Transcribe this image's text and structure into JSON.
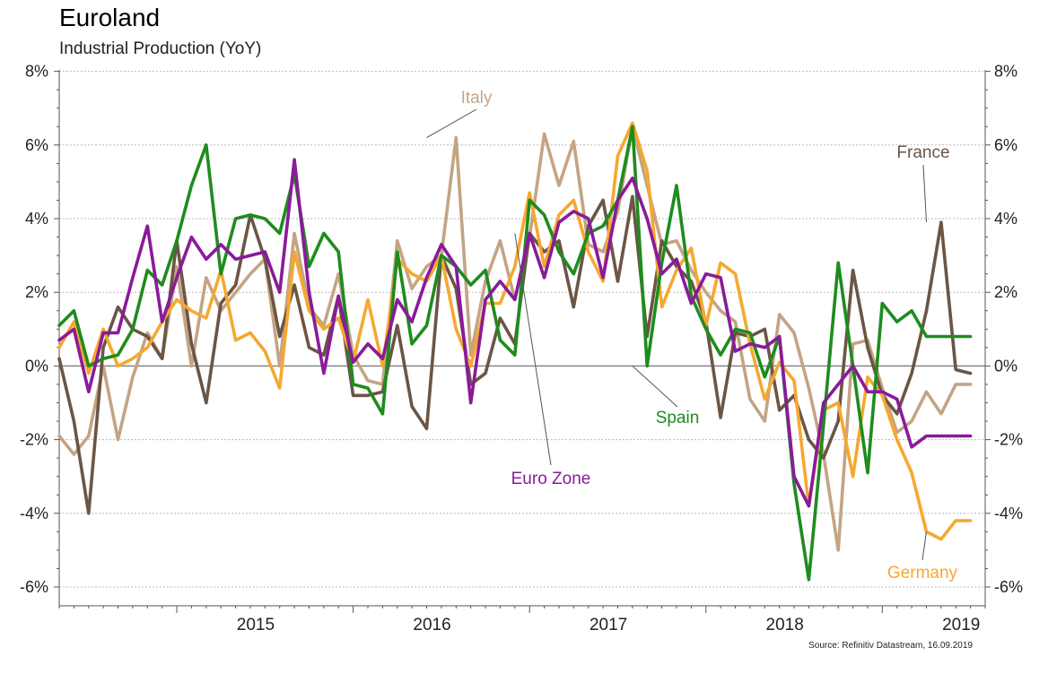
{
  "title": "Euroland",
  "subtitle": "Industrial Production (YoY)",
  "source": "Source: Refinitiv Datastream, 16.09.2019",
  "colors": {
    "italy": "#c4a484",
    "france": "#6b5544",
    "germany": "#f5a830",
    "spain": "#1e8c1e",
    "eurozone": "#8a1a9a"
  },
  "chart_data": {
    "type": "line",
    "title": "Euroland",
    "subtitle": "Industrial Production (YoY)",
    "yunit": "%",
    "ylim": [
      -6,
      8
    ],
    "yticks": [
      "-6%",
      "-4%",
      "-2%",
      "0%",
      "2%",
      "4%",
      "6%",
      "8%"
    ],
    "ytick_values": [
      -6,
      -4,
      -2,
      0,
      2,
      4,
      6,
      8
    ],
    "xticks": [
      "2015",
      "2016",
      "2017",
      "2018",
      "2019"
    ],
    "xlim": [
      "2014-05",
      "2019-08"
    ],
    "grid": true,
    "x": [
      "2014-05",
      "2014-06",
      "2014-07",
      "2014-08",
      "2014-09",
      "2014-10",
      "2014-11",
      "2014-12",
      "2015-01",
      "2015-02",
      "2015-03",
      "2015-04",
      "2015-05",
      "2015-06",
      "2015-07",
      "2015-08",
      "2015-09",
      "2015-10",
      "2015-11",
      "2015-12",
      "2016-01",
      "2016-02",
      "2016-03",
      "2016-04",
      "2016-05",
      "2016-06",
      "2016-07",
      "2016-08",
      "2016-09",
      "2016-10",
      "2016-11",
      "2016-12",
      "2017-01",
      "2017-02",
      "2017-03",
      "2017-04",
      "2017-05",
      "2017-06",
      "2017-07",
      "2017-08",
      "2017-09",
      "2017-10",
      "2017-11",
      "2017-12",
      "2018-01",
      "2018-02",
      "2018-03",
      "2018-04",
      "2018-05",
      "2018-06",
      "2018-07",
      "2018-08",
      "2018-09",
      "2018-10",
      "2018-11",
      "2018-12",
      "2019-01",
      "2019-02",
      "2019-03",
      "2019-04",
      "2019-05",
      "2019-06",
      "2019-07"
    ],
    "series": [
      {
        "name": "Italy",
        "key": "italy",
        "values": [
          -1.9,
          -2.4,
          -1.9,
          0.0,
          -2.0,
          -0.3,
          0.9,
          0.2,
          2.7,
          0.0,
          2.4,
          1.5,
          2.0,
          2.5,
          2.9,
          0.0,
          3.6,
          1.6,
          1.1,
          2.5,
          0.3,
          -0.4,
          -0.5,
          3.4,
          2.1,
          2.7,
          3.0,
          6.2,
          0.3,
          2.3,
          3.4,
          1.8,
          3.5,
          6.3,
          4.9,
          6.1,
          3.3,
          3.1,
          4.2,
          6.5,
          4.9,
          3.3,
          3.4,
          2.6,
          2.0,
          1.5,
          1.2,
          -0.9,
          -1.5,
          1.4,
          0.9,
          -0.6,
          -2.4,
          -5.0,
          0.6,
          0.7,
          -0.6,
          -1.8,
          -1.5,
          -0.7,
          -1.3,
          -0.5,
          -0.5
        ]
      },
      {
        "name": "France",
        "key": "france",
        "values": [
          0.2,
          -1.5,
          -4.0,
          0.5,
          1.6,
          1.0,
          0.8,
          0.2,
          3.4,
          0.6,
          -1.0,
          1.7,
          2.2,
          4.1,
          2.9,
          0.8,
          2.2,
          0.5,
          0.3,
          1.9,
          -0.8,
          -0.8,
          -0.7,
          1.1,
          -1.1,
          -1.7,
          3.0,
          2.1,
          -0.5,
          -0.2,
          1.3,
          0.6,
          3.6,
          3.1,
          3.4,
          1.6,
          3.8,
          4.5,
          2.3,
          4.6,
          0.8,
          3.4,
          2.7,
          2.3,
          1.2,
          -1.4,
          0.9,
          0.8,
          1.0,
          -1.2,
          -0.8,
          -2.0,
          -2.5,
          -1.5,
          2.6,
          0.5,
          -0.8,
          -1.3,
          -0.2,
          1.5,
          3.9,
          -0.1,
          -0.2
        ]
      },
      {
        "name": "Germany",
        "key": "germany",
        "values": [
          0.5,
          1.2,
          -0.2,
          1.0,
          0.0,
          0.2,
          0.5,
          1.2,
          1.8,
          1.5,
          1.3,
          2.6,
          0.7,
          0.9,
          0.4,
          -0.6,
          3.1,
          1.5,
          1.0,
          1.3,
          0.1,
          1.8,
          0.0,
          2.9,
          2.5,
          2.3,
          3.0,
          1.0,
          0.0,
          1.7,
          1.7,
          2.7,
          4.7,
          2.7,
          4.1,
          4.5,
          3.1,
          2.3,
          5.7,
          6.6,
          5.3,
          1.6,
          2.6,
          3.2,
          1.1,
          2.8,
          2.5,
          0.6,
          -0.9,
          0.1,
          -0.4,
          -3.8,
          -1.2,
          -1.0,
          -3.0,
          -0.3,
          -0.8,
          -2.0,
          -2.9,
          -4.5,
          -4.7,
          -4.2,
          -4.2
        ]
      },
      {
        "name": "Spain",
        "key": "spain",
        "values": [
          1.1,
          1.5,
          0.0,
          0.2,
          0.3,
          1.0,
          2.6,
          2.2,
          3.4,
          4.9,
          6.0,
          2.5,
          4.0,
          4.1,
          4.0,
          3.6,
          5.2,
          2.7,
          3.6,
          3.1,
          -0.5,
          -0.6,
          -1.3,
          3.1,
          0.6,
          1.1,
          3.0,
          2.7,
          2.2,
          2.6,
          0.7,
          0.3,
          4.5,
          4.1,
          3.1,
          2.5,
          3.6,
          3.8,
          4.5,
          6.5,
          0.0,
          2.8,
          4.9,
          1.9,
          1.0,
          0.3,
          1.0,
          0.9,
          -0.3,
          0.8,
          -3.2,
          -5.8,
          -1.6,
          2.8,
          0.0,
          -2.9,
          1.7,
          1.2,
          1.5,
          0.8,
          0.8,
          0.8,
          0.8
        ]
      },
      {
        "name": "Euro Zone",
        "key": "eurozone",
        "values": [
          0.7,
          1.0,
          -0.7,
          0.9,
          0.9,
          2.4,
          3.8,
          1.2,
          2.4,
          3.5,
          2.9,
          3.3,
          2.9,
          3.0,
          3.1,
          2.0,
          5.6,
          2.0,
          -0.2,
          1.9,
          0.1,
          0.6,
          0.2,
          1.8,
          1.2,
          2.4,
          3.3,
          2.7,
          -1.0,
          1.8,
          2.3,
          1.8,
          3.6,
          2.4,
          3.9,
          4.2,
          4.0,
          2.4,
          4.5,
          5.1,
          4.0,
          2.5,
          2.9,
          1.7,
          2.5,
          2.4,
          0.4,
          0.6,
          0.5,
          0.8,
          -3.0,
          -3.8,
          -1.0,
          -0.5,
          0.0,
          -0.7,
          -0.7,
          -0.9,
          -2.2,
          -1.9,
          -1.9,
          -1.9,
          -1.9
        ]
      }
    ],
    "annotations": [
      {
        "text": "Italy",
        "key": "italy",
        "x": "2016-06",
        "y": 6.2
      },
      {
        "text": "France",
        "key": "france",
        "x": "2019-04",
        "y": 3.9
      },
      {
        "text": "Spain",
        "key": "spain",
        "x": "2017-08",
        "y": 0.0
      },
      {
        "text": "Euro Zone",
        "key": "eurozone",
        "x": "2016-12",
        "y": 3.6
      },
      {
        "text": "Germany",
        "key": "germany",
        "x": "2019-04",
        "y": -4.5
      }
    ]
  }
}
